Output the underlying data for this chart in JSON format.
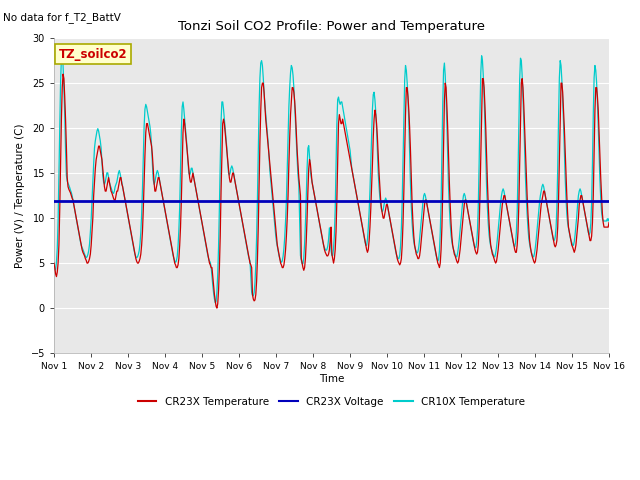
{
  "title": "Tonzi Soil CO2 Profile: Power and Temperature",
  "subtitle": "No data for f_T2_BattV",
  "ylabel": "Power (V) / Temperature (C)",
  "xlabel": "Time",
  "ylim": [
    -5,
    30
  ],
  "yticks": [
    -5,
    0,
    5,
    10,
    15,
    20,
    25,
    30
  ],
  "voltage_line": 11.9,
  "voltage_color": "#0000BB",
  "cr23x_color": "#CC0000",
  "cr10x_color": "#00CCCC",
  "bg_color": "#E8E8E8",
  "legend_label": "TZ_soilco2",
  "legend_bg": "#FFFFCC",
  "legend_border": "#AAAA00",
  "x_labels": [
    "Nov 1",
    "Nov 2",
    "Nov 3",
    "Nov 4",
    "Nov 5",
    "Nov 6",
    "Nov 7",
    "Nov 8",
    "Nov 9",
    "Nov 10",
    "Nov 11",
    "Nov 12",
    "Nov 13",
    "Nov 14",
    "Nov 15",
    "Nov 16"
  ],
  "cr23x_temp": [
    5.0,
    4.5,
    3.8,
    3.5,
    4.0,
    5.0,
    7.0,
    11.0,
    16.0,
    21.0,
    24.5,
    26.0,
    25.5,
    23.5,
    21.0,
    18.0,
    14.5,
    13.5,
    13.2,
    13.0,
    12.8,
    12.5,
    12.2,
    12.0,
    11.5,
    11.0,
    10.5,
    10.0,
    9.5,
    9.0,
    8.5,
    8.0,
    7.5,
    7.0,
    6.5,
    6.2,
    6.0,
    5.8,
    5.5,
    5.3,
    5.0,
    5.0,
    5.2,
    5.5,
    6.0,
    7.0,
    8.5,
    10.0,
    12.5,
    14.0,
    15.5,
    16.5,
    17.0,
    17.5,
    18.0,
    18.0,
    17.5,
    17.0,
    16.5,
    15.5,
    14.5,
    13.5,
    13.0,
    13.0,
    13.5,
    14.0,
    14.5,
    14.0,
    13.5,
    13.0,
    12.8,
    12.5,
    12.2,
    12.0,
    12.0,
    12.5,
    13.0,
    13.0,
    13.5,
    14.0,
    14.5,
    14.5,
    13.8,
    13.5,
    13.0,
    12.5,
    12.0,
    11.5,
    11.0,
    10.5,
    10.0,
    9.5,
    9.0,
    8.5,
    8.0,
    7.5,
    7.0,
    6.5,
    6.0,
    5.5,
    5.2,
    5.0,
    5.0,
    5.2,
    5.5,
    6.0,
    7.0,
    8.5,
    11.0,
    14.0,
    17.0,
    19.5,
    20.5,
    20.5,
    20.0,
    19.5,
    19.0,
    18.5,
    18.0,
    17.0,
    15.5,
    14.0,
    13.0,
    13.0,
    13.5,
    14.0,
    14.5,
    14.5,
    14.0,
    13.5,
    13.0,
    12.5,
    12.0,
    11.5,
    11.0,
    10.5,
    10.0,
    9.5,
    9.0,
    8.5,
    8.0,
    7.5,
    7.0,
    6.5,
    6.0,
    5.5,
    5.0,
    4.8,
    4.5,
    4.5,
    4.8,
    5.5,
    7.0,
    9.0,
    12.0,
    16.0,
    19.5,
    21.0,
    20.5,
    19.5,
    18.5,
    17.5,
    16.5,
    15.5,
    14.5,
    14.0,
    14.0,
    14.5,
    15.0,
    14.5,
    14.0,
    13.5,
    13.0,
    12.5,
    12.0,
    11.5,
    11.0,
    10.5,
    10.0,
    9.5,
    9.0,
    8.5,
    8.0,
    7.5,
    7.0,
    6.5,
    6.0,
    5.5,
    5.0,
    4.8,
    4.5,
    4.5,
    3.5,
    2.5,
    1.5,
    0.8,
    0.2,
    0.0,
    0.5,
    2.0,
    4.5,
    8.0,
    13.0,
    17.0,
    20.5,
    21.0,
    20.5,
    19.5,
    18.5,
    17.5,
    16.5,
    15.5,
    14.5,
    14.0,
    14.0,
    14.5,
    15.0,
    15.0,
    14.5,
    14.0,
    13.5,
    13.0,
    12.5,
    12.0,
    11.5,
    11.0,
    10.5,
    10.0,
    9.5,
    9.0,
    8.5,
    8.0,
    7.5,
    7.0,
    6.5,
    6.0,
    5.5,
    5.0,
    4.8,
    4.5,
    1.5,
    1.0,
    0.8,
    0.9,
    1.5,
    3.0,
    5.5,
    9.0,
    14.0,
    18.5,
    22.0,
    24.5,
    25.0,
    25.0,
    24.0,
    22.5,
    21.0,
    20.0,
    19.0,
    18.0,
    17.0,
    16.0,
    15.0,
    14.0,
    13.0,
    12.0,
    11.0,
    10.0,
    9.0,
    8.0,
    7.0,
    6.5,
    6.0,
    5.5,
    5.0,
    4.8,
    4.5,
    4.5,
    4.8,
    5.5,
    6.5,
    8.0,
    10.0,
    12.5,
    16.0,
    19.0,
    21.5,
    23.0,
    24.5,
    24.5,
    24.0,
    23.0,
    21.5,
    19.5,
    17.5,
    16.0,
    14.5,
    13.5,
    12.5,
    5.5,
    5.0,
    4.5,
    4.2,
    4.5,
    5.5,
    7.5,
    10.0,
    13.0,
    15.5,
    16.5,
    16.0,
    15.0,
    14.0,
    13.5,
    13.0,
    12.5,
    12.0,
    11.5,
    11.0,
    10.5,
    10.0,
    9.5,
    9.0,
    8.5,
    8.0,
    7.5,
    7.0,
    6.5,
    6.2,
    6.0,
    5.8,
    5.8,
    6.0,
    6.5,
    7.5,
    9.0,
    6.0,
    5.5,
    5.0,
    5.5,
    6.5,
    8.5,
    12.0,
    16.5,
    20.5,
    21.5,
    21.0,
    20.5,
    20.5,
    21.0,
    20.5,
    20.0,
    19.5,
    19.0,
    18.5,
    18.0,
    17.5,
    17.0,
    16.5,
    16.0,
    15.5,
    15.0,
    14.5,
    14.0,
    13.5,
    13.0,
    12.5,
    12.0,
    11.5,
    11.0,
    10.5,
    10.0,
    9.5,
    9.0,
    8.5,
    8.0,
    7.5,
    7.0,
    6.5,
    6.2,
    6.5,
    7.5,
    9.0,
    11.0,
    13.5,
    16.0,
    19.0,
    21.0,
    22.0,
    21.5,
    20.5,
    19.0,
    17.0,
    15.0,
    13.5,
    12.0,
    11.0,
    10.5,
    10.0,
    10.0,
    10.5,
    11.0,
    11.5,
    11.5,
    11.0,
    10.5,
    10.0,
    9.5,
    9.0,
    8.5,
    8.0,
    7.5,
    7.0,
    6.5,
    6.0,
    5.5,
    5.2,
    5.0,
    4.8,
    5.0,
    5.5,
    7.0,
    9.5,
    13.0,
    17.5,
    21.5,
    24.5,
    24.5,
    23.5,
    22.0,
    20.0,
    17.5,
    14.5,
    11.5,
    9.5,
    8.0,
    7.0,
    6.5,
    6.0,
    5.8,
    5.5,
    5.5,
    5.8,
    6.5,
    7.5,
    8.5,
    9.5,
    10.5,
    11.5,
    12.0,
    12.0,
    11.5,
    11.0,
    10.5,
    10.0,
    9.5,
    9.0,
    8.5,
    8.0,
    7.5,
    7.0,
    6.5,
    6.0,
    5.5,
    5.0,
    4.8,
    4.5,
    5.0,
    6.5,
    9.0,
    13.0,
    18.0,
    23.0,
    25.0,
    24.5,
    22.5,
    20.0,
    17.0,
    14.0,
    11.5,
    9.5,
    8.0,
    7.0,
    6.5,
    6.0,
    5.8,
    5.5,
    5.2,
    5.0,
    5.2,
    5.8,
    6.5,
    7.5,
    8.5,
    9.5,
    10.5,
    11.5,
    12.0,
    12.0,
    11.5,
    11.0,
    10.5,
    10.0,
    9.5,
    9.0,
    8.5,
    8.0,
    7.5,
    7.0,
    6.5,
    6.2,
    6.0,
    6.2,
    7.0,
    9.0,
    12.5,
    17.0,
    22.0,
    25.5,
    25.5,
    24.5,
    22.5,
    20.0,
    17.0,
    14.0,
    11.5,
    9.5,
    8.0,
    7.0,
    6.5,
    6.0,
    5.8,
    5.5,
    5.2,
    5.0,
    5.2,
    5.8,
    6.5,
    7.5,
    8.5,
    9.5,
    10.5,
    11.5,
    12.0,
    12.5,
    12.5,
    12.0,
    11.5,
    11.0,
    10.5,
    10.0,
    9.5,
    9.0,
    8.5,
    8.0,
    7.5,
    7.0,
    6.5,
    6.2,
    6.2,
    7.0,
    8.5,
    11.5,
    16.0,
    21.0,
    25.0,
    25.5,
    24.5,
    22.5,
    20.0,
    17.5,
    15.0,
    12.5,
    10.5,
    9.0,
    7.5,
    6.8,
    6.2,
    5.8,
    5.5,
    5.2,
    5.0,
    5.2,
    5.8,
    6.5,
    7.5,
    8.5,
    9.5,
    10.5,
    11.5,
    12.0,
    12.5,
    13.0,
    13.0,
    12.5,
    12.0,
    11.5,
    11.0,
    10.5,
    10.0,
    9.5,
    9.0,
    8.5,
    8.0,
    7.5,
    7.0,
    6.8,
    7.0,
    7.5,
    9.0,
    12.0,
    16.5,
    21.5,
    25.0,
    25.0,
    24.0,
    22.0,
    20.0,
    17.5,
    15.0,
    12.5,
    10.5,
    9.0,
    8.5,
    8.0,
    7.5,
    7.0,
    6.8,
    6.5,
    6.2,
    6.5,
    7.0,
    8.0,
    9.0,
    10.0,
    11.5,
    12.0,
    12.5,
    12.5,
    12.0,
    11.5,
    11.0,
    10.5,
    10.0,
    9.5,
    9.0,
    8.5,
    8.0,
    7.5,
    7.5,
    8.0,
    9.5,
    12.5,
    17.0,
    22.0,
    24.5,
    24.5,
    23.5,
    22.0,
    19.5,
    17.0,
    14.5,
    12.5,
    10.5,
    9.5,
    9.0,
    9.0,
    9.0,
    9.0,
    9.0,
    9.0,
    9.5
  ]
}
